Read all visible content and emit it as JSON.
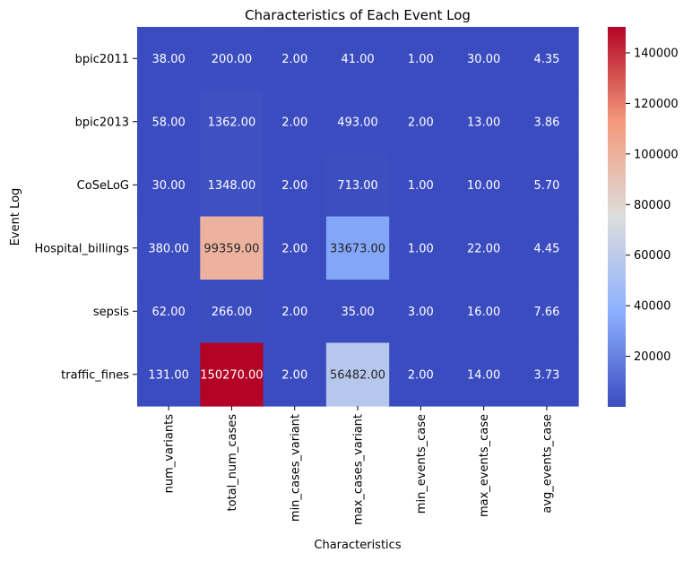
{
  "chart_data": {
    "type": "heatmap",
    "title": "Characteristics of Each Event Log",
    "xlabel": "Characteristics",
    "ylabel": "Event Log",
    "rows": [
      "bpic2011",
      "bpic2013",
      "CoSeLoG",
      "Hospital_billings",
      "sepsis",
      "traffic_fines"
    ],
    "columns": [
      "num_variants",
      "total_num_cases",
      "min_cases_variant",
      "max_cases_variant",
      "min_events_case",
      "max_events_case",
      "avg_events_case"
    ],
    "values": [
      [
        38.0,
        200.0,
        2.0,
        41.0,
        1.0,
        30.0,
        4.35
      ],
      [
        58.0,
        1362.0,
        2.0,
        493.0,
        2.0,
        13.0,
        3.86
      ],
      [
        30.0,
        1348.0,
        2.0,
        713.0,
        1.0,
        10.0,
        5.7
      ],
      [
        380.0,
        99359.0,
        2.0,
        33673.0,
        1.0,
        22.0,
        4.45
      ],
      [
        62.0,
        266.0,
        2.0,
        35.0,
        3.0,
        16.0,
        7.66
      ],
      [
        131.0,
        150270.0,
        2.0,
        56482.0,
        2.0,
        14.0,
        3.73
      ]
    ],
    "value_format": "2 decimals",
    "colormap": "coolwarm",
    "colormap_stops": [
      "#3b4cc0",
      "#8db0fe",
      "#dddddd",
      "#f49a7b",
      "#b40426"
    ],
    "vmin": 1.0,
    "vmax": 150270.0,
    "colorbar_ticks": [
      20000,
      40000,
      60000,
      80000,
      100000,
      120000,
      140000
    ],
    "grid": false,
    "legend": "colorbar-right"
  }
}
